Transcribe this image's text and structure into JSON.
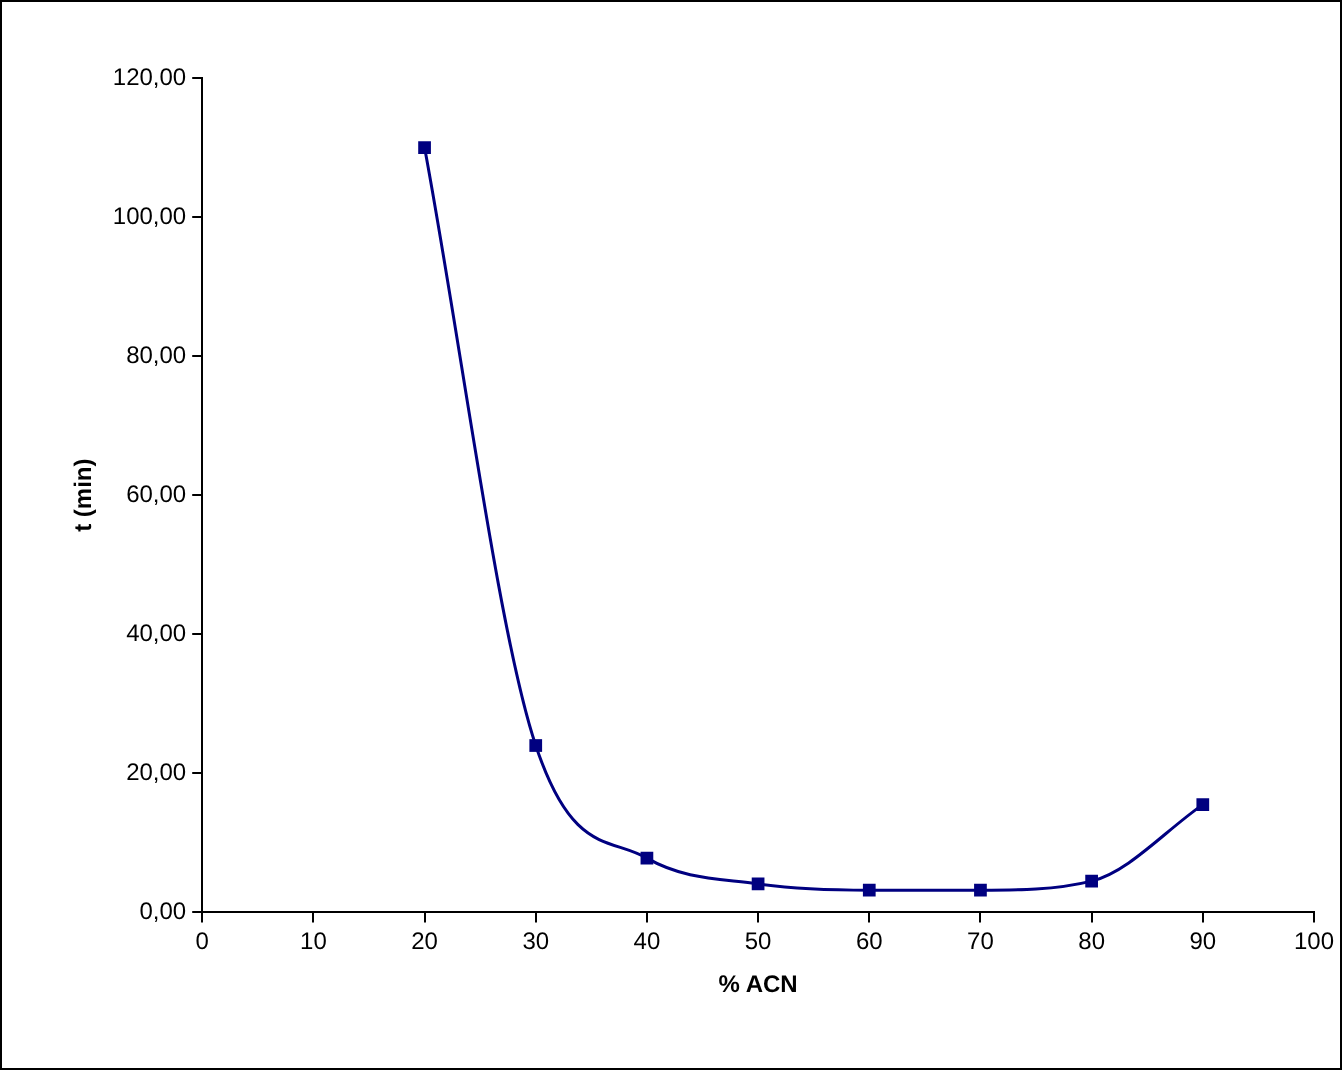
{
  "chart_data": {
    "type": "line",
    "xlabel": "% ACN",
    "ylabel": "t (min)",
    "x": [
      20,
      30,
      40,
      50,
      60,
      70,
      80,
      90
    ],
    "series": [
      {
        "color": "#000080",
        "values": [
          110,
          24,
          7.8,
          4.1,
          3.2,
          3.2,
          4.5,
          15.5
        ]
      }
    ],
    "xlim": [
      0,
      100
    ],
    "xticks": [
      0,
      10,
      20,
      30,
      40,
      50,
      60,
      70,
      80,
      90,
      100
    ],
    "ylim": [
      0,
      120
    ],
    "yticks": [
      {
        "value": 0,
        "label": "0,00"
      },
      {
        "value": 20,
        "label": "20,00"
      },
      {
        "value": 40,
        "label": "40,00"
      },
      {
        "value": 60,
        "label": "60,00"
      },
      {
        "value": 80,
        "label": "80,00"
      },
      {
        "value": 100,
        "label": "100,00"
      },
      {
        "value": 120,
        "label": "120,00"
      }
    ],
    "grid": false,
    "legend": false,
    "marker": "square",
    "line_style": "solid"
  }
}
